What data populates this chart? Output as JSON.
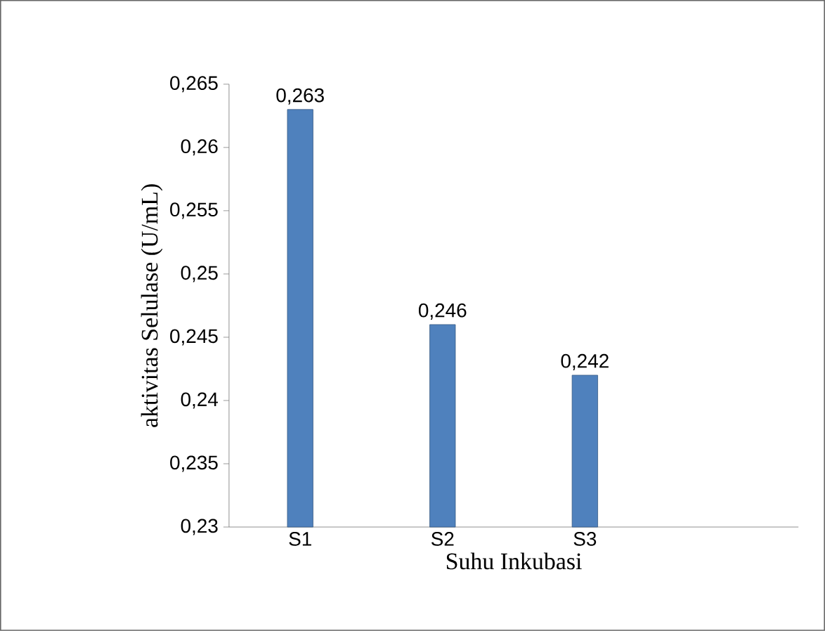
{
  "chart_data": {
    "type": "bar",
    "xlabel": "Suhu Inkubasi",
    "ylabel": "aktivitas Selulase  (U/mL)",
    "categories": [
      "S1",
      "S2",
      "S3",
      null
    ],
    "values": [
      0.263,
      0.246,
      0.242,
      null
    ],
    "value_labels": [
      "0,263",
      "0,246",
      "0,242",
      null
    ],
    "color": "#4f81bd",
    "ylim": [
      0.23,
      0.265
    ],
    "yticks": [
      {
        "value": 0.23,
        "label": "0,23"
      },
      {
        "value": 0.235,
        "label": "0,235"
      },
      {
        "value": 0.24,
        "label": "0,24"
      },
      {
        "value": 0.245,
        "label": "0,245"
      },
      {
        "value": 0.25,
        "label": "0,25"
      },
      {
        "value": 0.255,
        "label": "0,255"
      },
      {
        "value": 0.26,
        "label": "0,26"
      },
      {
        "value": 0.265,
        "label": "0,265"
      }
    ],
    "grid": false
  }
}
